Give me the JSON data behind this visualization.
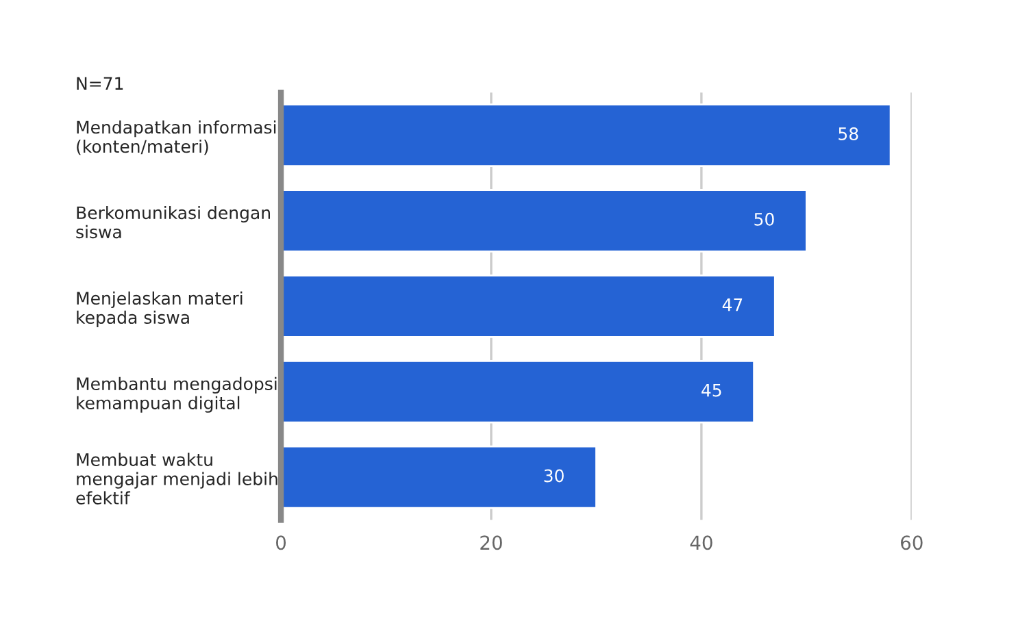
{
  "chart_data": {
    "type": "bar",
    "orientation": "horizontal",
    "categories": [
      "Mendapatkan informasi\n(konten/materi)",
      "Berkomunikasi dengan\nsiswa",
      "Menjelaskan materi\nkepada siswa",
      "Membantu mengadopsi\nkemampuan digital",
      "Membuat waktu\nmengajar menjadi lebih\nefektif"
    ],
    "values": [
      58,
      50,
      47,
      45,
      30
    ],
    "color": "#2563d4",
    "xlim": [
      0,
      60
    ],
    "xticks": [
      0,
      20,
      40,
      60
    ],
    "grid": "x",
    "data_labels": true,
    "annotations": [
      "N=71"
    ]
  }
}
